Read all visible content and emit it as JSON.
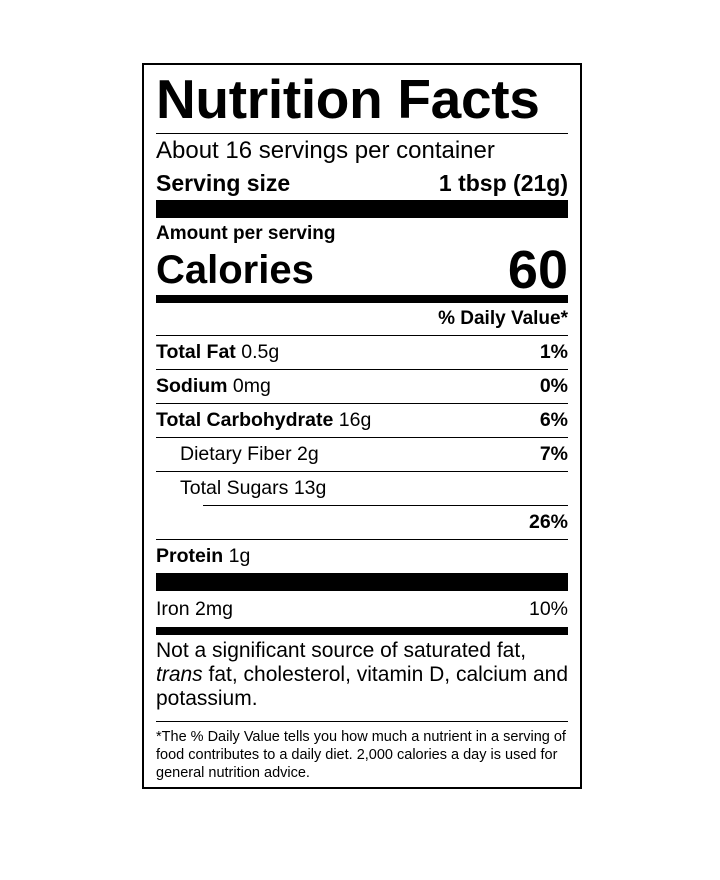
{
  "title": "Nutrition Facts",
  "servings_per_container": "About 16 servings per container",
  "serving_size": {
    "label": "Serving size",
    "value": "1 tbsp (21g)"
  },
  "amount_per_serving": "Amount per serving",
  "calories": {
    "label": "Calories",
    "value": "60"
  },
  "daily_value_header": "% Daily Value*",
  "nutrients": [
    {
      "name": "Total Fat",
      "amount": "0.5g",
      "dv": "1%"
    },
    {
      "name": "Sodium",
      "amount": "0mg",
      "dv": "0%"
    },
    {
      "name": "Total Carbohydrate",
      "amount": "16g",
      "dv": "6%"
    },
    {
      "name": "Dietary Fiber",
      "amount": "2g",
      "dv": "7%"
    },
    {
      "name": "Total Sugars",
      "amount": "13g"
    },
    {
      "name": "",
      "amount": "",
      "dv": "26%"
    },
    {
      "name": "Protein",
      "amount": "1g"
    }
  ],
  "vitamins": [
    {
      "name": "Iron",
      "amount": "2mg",
      "dv": "10%"
    }
  ],
  "note": {
    "pre": "Not a significant source of saturated fat,",
    "italic": "trans",
    "post": " fat, cholesterol, vitamin D, calcium and potassium."
  },
  "footnote": "*The % Daily Value tells you how much a nutrient in a serving of food contributes to a daily diet. 2,000 calories a day is used for general nutrition advice."
}
